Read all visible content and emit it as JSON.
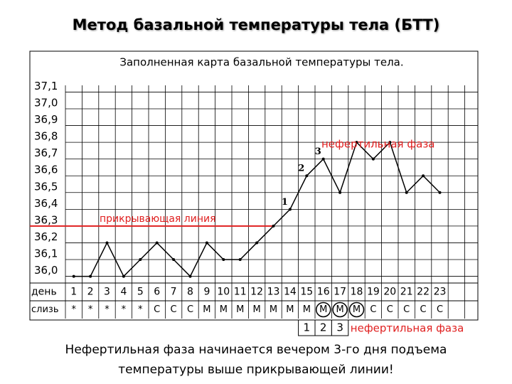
{
  "slide_title": "Метод базальной температуры тела (БТТ)",
  "footer": [
    "Нефертильная фаза начинается вечером 3-го дня подъема",
    "температуры выше прикрывающей линии!"
  ],
  "chart_data": {
    "type": "line",
    "title": "Заполненная карта базальной температуры тела.",
    "x_label": "день",
    "categories": [
      "1",
      "2",
      "3",
      "4",
      "5",
      "6",
      "7",
      "8",
      "9",
      "10",
      "11",
      "12",
      "13",
      "14",
      "15",
      "16",
      "17",
      "18",
      "19",
      "20",
      "21",
      "22",
      "23"
    ],
    "values": [
      36.0,
      36.0,
      36.2,
      36.0,
      36.1,
      36.2,
      36.1,
      36.0,
      36.2,
      36.1,
      36.1,
      36.2,
      36.3,
      36.4,
      36.6,
      36.7,
      36.5,
      36.8,
      36.7,
      36.8,
      36.5,
      36.6,
      36.5
    ],
    "color": "#000000",
    "mucus_label": "слизь",
    "mucus": [
      "*",
      "*",
      "*",
      "*",
      "*",
      "С",
      "С",
      "С",
      "М",
      "М",
      "М",
      "М",
      "М",
      "М",
      "М",
      "М",
      "М",
      "М",
      "С",
      "С",
      "С",
      "С",
      "С"
    ],
    "mucus_circled": [
      "16",
      "17",
      "18"
    ],
    "cover_line": {
      "label": "прикрывающая линия",
      "value": 36.3,
      "color": "#e02020"
    },
    "phase_label": "нефертильная фаза",
    "rise_labels": [
      {
        "text": "1",
        "day": "14"
      },
      {
        "text": "2",
        "day": "15"
      },
      {
        "text": "3",
        "day": "16"
      }
    ],
    "bottom_box": {
      "labels": [
        "1",
        "2",
        "3"
      ],
      "text": "нефертильная фаза"
    },
    "ylim": [
      35.96,
      37.14
    ],
    "yticks": [
      {
        "value": 36.0,
        "label": "36,0"
      },
      {
        "value": 36.1,
        "label": "36,1"
      },
      {
        "value": 36.2,
        "label": "36,2"
      },
      {
        "value": 36.3,
        "label": "36,3"
      },
      {
        "value": 36.4,
        "label": "36,4"
      },
      {
        "value": 36.5,
        "label": "36,5"
      },
      {
        "value": 36.6,
        "label": "36,6"
      },
      {
        "value": 36.7,
        "label": "36,7"
      },
      {
        "value": 36.8,
        "label": "36,8"
      },
      {
        "value": 36.9,
        "label": "36,9"
      },
      {
        "value": 37.0,
        "label": "37,0"
      },
      {
        "value": 37.1,
        "label": "37,1"
      }
    ],
    "grid": true
  }
}
